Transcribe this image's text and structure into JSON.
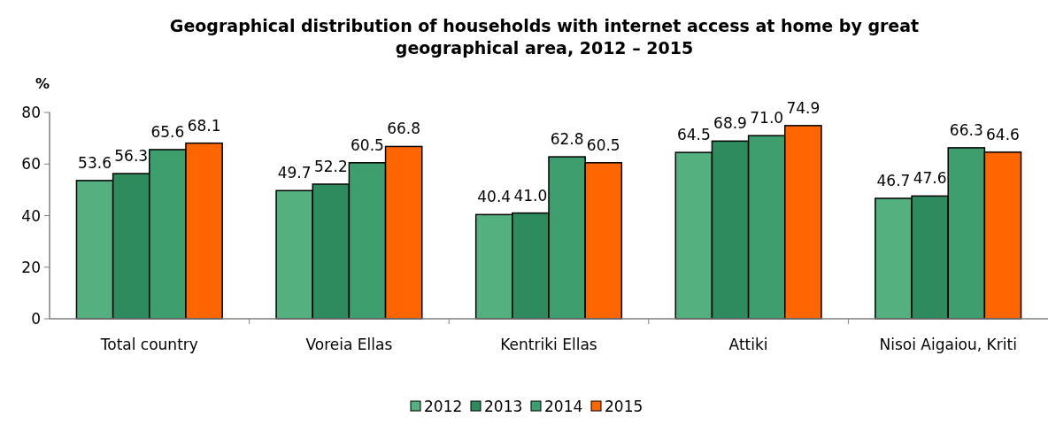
{
  "chart_data": {
    "type": "bar",
    "title": "Geographical distribution of households with internet access at home by great geographical area, 2012 – 2015",
    "ylabel": "%",
    "categories": [
      "Total country",
      "Voreia Ellas",
      "Kentriki Ellas",
      "Attiki",
      "Nisoi Aigaiou, Kriti"
    ],
    "series": [
      {
        "name": "2012",
        "color": "#55b07f",
        "values": [
          53.6,
          49.7,
          40.4,
          64.5,
          46.7
        ],
        "value_labels": [
          "53.6",
          "49.7",
          "40.4",
          "64.5",
          "46.7"
        ]
      },
      {
        "name": "2013",
        "color": "#2e8b5e",
        "values": [
          56.3,
          52.2,
          41.0,
          68.9,
          47.6
        ],
        "value_labels": [
          "56.3",
          "52.2",
          "41.0",
          "68.9",
          "47.6"
        ]
      },
      {
        "name": "2014",
        "color": "#3f9e6e",
        "values": [
          65.6,
          60.5,
          62.8,
          71.0,
          66.3
        ],
        "value_labels": [
          "65.6",
          "60.5",
          "62.8",
          "71.0",
          "66.3"
        ]
      },
      {
        "name": "2015",
        "color": "#ff6600",
        "values": [
          68.1,
          66.8,
          60.5,
          74.9,
          64.6
        ],
        "value_labels": [
          "68.1",
          "66.8",
          "60.5",
          "74.9",
          "64.6"
        ]
      }
    ],
    "ylim": [
      0,
      80
    ],
    "yticks": [
      0,
      20,
      40,
      60,
      80
    ],
    "grid": false,
    "legend": "bottom"
  }
}
